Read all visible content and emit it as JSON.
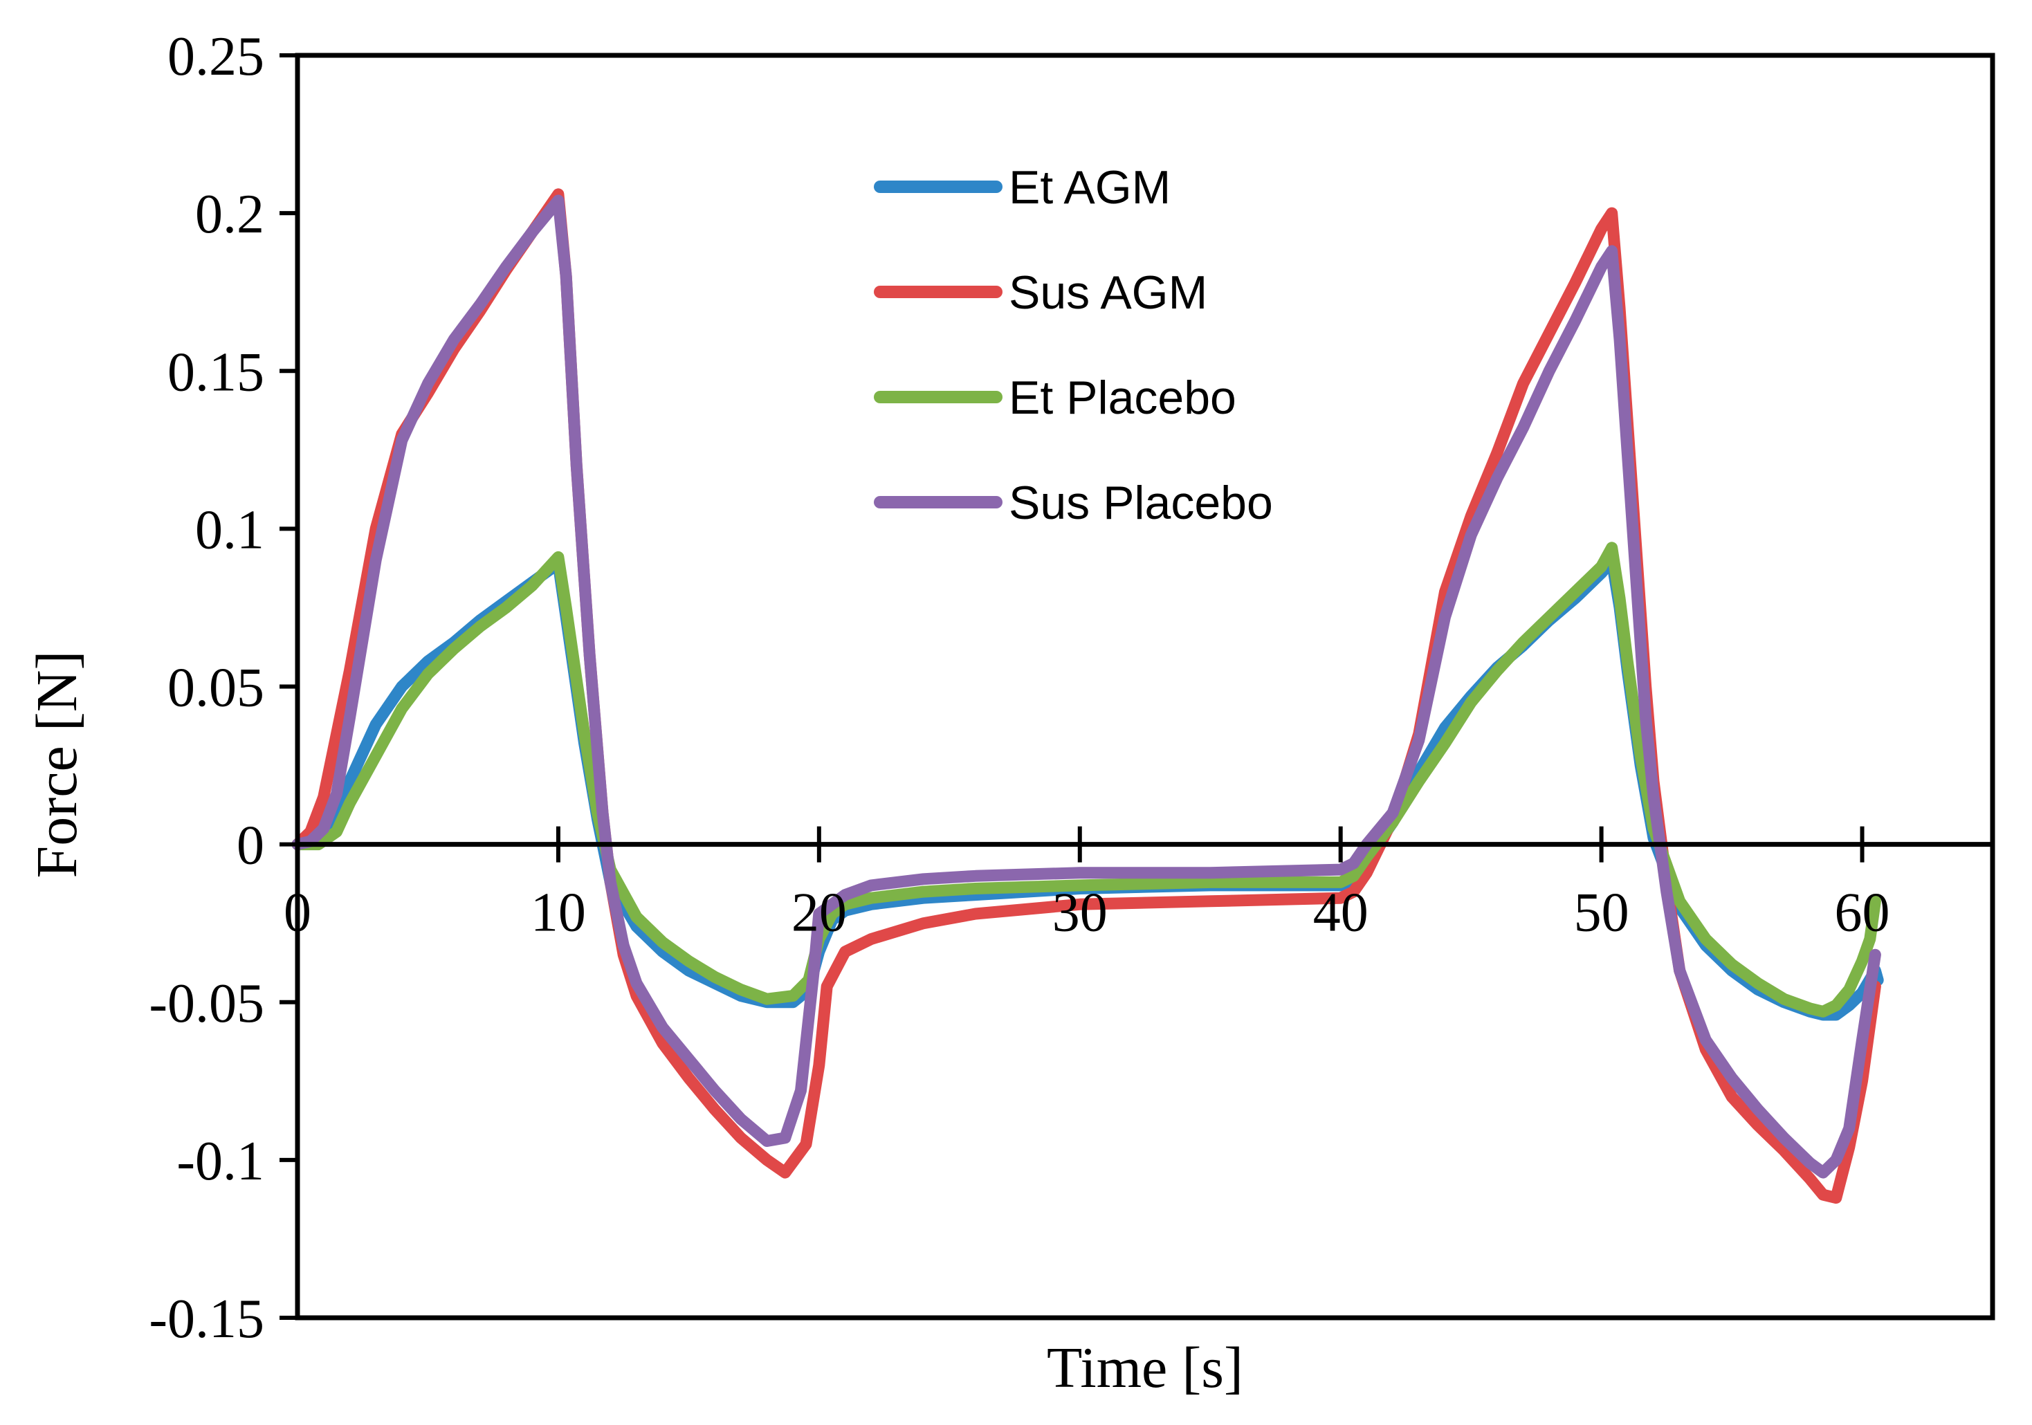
{
  "chart_data": {
    "type": "line",
    "title": "",
    "xlabel": "Time [s]",
    "ylabel": "Force [N]",
    "xlim": [
      0,
      65
    ],
    "ylim": [
      -0.15,
      0.25
    ],
    "xticks": [
      0,
      10,
      20,
      30,
      40,
      50,
      60
    ],
    "xtick_labels": [
      "0",
      "10",
      "20",
      "30",
      "40",
      "50",
      "60"
    ],
    "yticks": [
      -0.15,
      -0.1,
      -0.05,
      0,
      0.05,
      0.1,
      0.15,
      0.2,
      0.25
    ],
    "ytick_labels": [
      "-0.15",
      "-0.1",
      "-0.05",
      "0",
      "0.05",
      "0.1",
      "0.15",
      "0.2",
      "0.25"
    ],
    "grid": false,
    "legend_position": "top-center",
    "series": [
      {
        "name": "Et AGM",
        "color": "#2E86C8",
        "points": [
          [
            0,
            0
          ],
          [
            0.5,
            0.001
          ],
          [
            1,
            0.004
          ],
          [
            2,
            0.02
          ],
          [
            3,
            0.038
          ],
          [
            4,
            0.05
          ],
          [
            5,
            0.058
          ],
          [
            6,
            0.064
          ],
          [
            7,
            0.071
          ],
          [
            8,
            0.077
          ],
          [
            9,
            0.083
          ],
          [
            10,
            0.089
          ],
          [
            10.3,
            0.072
          ],
          [
            11,
            0.032
          ],
          [
            11.5,
            0.008
          ],
          [
            12,
            -0.012
          ],
          [
            13,
            -0.026
          ],
          [
            14,
            -0.034
          ],
          [
            15,
            -0.04
          ],
          [
            16,
            -0.044
          ],
          [
            17,
            -0.048
          ],
          [
            18,
            -0.05
          ],
          [
            19,
            -0.05
          ],
          [
            19.6,
            -0.046
          ],
          [
            20,
            -0.034
          ],
          [
            20.5,
            -0.024
          ],
          [
            21,
            -0.021
          ],
          [
            22,
            -0.019
          ],
          [
            24,
            -0.017
          ],
          [
            26,
            -0.016
          ],
          [
            30,
            -0.014
          ],
          [
            35,
            -0.013
          ],
          [
            40,
            -0.013
          ],
          [
            40.5,
            -0.011
          ],
          [
            41,
            -0.005
          ],
          [
            42,
            0.007
          ],
          [
            43,
            0.023
          ],
          [
            44,
            0.037
          ],
          [
            45,
            0.047
          ],
          [
            46,
            0.056
          ],
          [
            47,
            0.063
          ],
          [
            48,
            0.071
          ],
          [
            49,
            0.078
          ],
          [
            50,
            0.086
          ],
          [
            50.4,
            0.09
          ],
          [
            50.7,
            0.075
          ],
          [
            51,
            0.055
          ],
          [
            51.5,
            0.025
          ],
          [
            52,
            0.002
          ],
          [
            53,
            -0.02
          ],
          [
            54,
            -0.032
          ],
          [
            55,
            -0.04
          ],
          [
            56,
            -0.046
          ],
          [
            57,
            -0.05
          ],
          [
            58,
            -0.053
          ],
          [
            58.5,
            -0.054
          ],
          [
            59,
            -0.054
          ],
          [
            59.5,
            -0.051
          ],
          [
            60,
            -0.047
          ],
          [
            60.5,
            -0.04
          ],
          [
            60.6,
            -0.043
          ]
        ]
      },
      {
        "name": "Sus AGM",
        "color": "#E04848",
        "points": [
          [
            0,
            0
          ],
          [
            0.5,
            0.004
          ],
          [
            1,
            0.015
          ],
          [
            2,
            0.055
          ],
          [
            3,
            0.1
          ],
          [
            4,
            0.13
          ],
          [
            5,
            0.143
          ],
          [
            6,
            0.157
          ],
          [
            7,
            0.169
          ],
          [
            8,
            0.182
          ],
          [
            9,
            0.194
          ],
          [
            10,
            0.206
          ],
          [
            10.3,
            0.18
          ],
          [
            10.7,
            0.12
          ],
          [
            11.2,
            0.06
          ],
          [
            11.7,
            0.01
          ],
          [
            12,
            -0.012
          ],
          [
            12.5,
            -0.035
          ],
          [
            13,
            -0.048
          ],
          [
            14,
            -0.063
          ],
          [
            15,
            -0.074
          ],
          [
            16,
            -0.084
          ],
          [
            17,
            -0.093
          ],
          [
            18,
            -0.1
          ],
          [
            18.7,
            -0.104
          ],
          [
            19.5,
            -0.095
          ],
          [
            20,
            -0.07
          ],
          [
            20.3,
            -0.045
          ],
          [
            21,
            -0.034
          ],
          [
            22,
            -0.03
          ],
          [
            24,
            -0.025
          ],
          [
            26,
            -0.022
          ],
          [
            30,
            -0.019
          ],
          [
            35,
            -0.018
          ],
          [
            40,
            -0.017
          ],
          [
            40.5,
            -0.015
          ],
          [
            41,
            -0.009
          ],
          [
            42,
            0.008
          ],
          [
            43,
            0.035
          ],
          [
            44,
            0.08
          ],
          [
            45,
            0.104
          ],
          [
            46,
            0.124
          ],
          [
            47,
            0.146
          ],
          [
            48,
            0.162
          ],
          [
            49,
            0.178
          ],
          [
            50,
            0.195
          ],
          [
            50.4,
            0.2
          ],
          [
            50.7,
            0.17
          ],
          [
            51.2,
            0.11
          ],
          [
            51.7,
            0.05
          ],
          [
            52,
            0.02
          ],
          [
            52.5,
            -0.012
          ],
          [
            53,
            -0.04
          ],
          [
            54,
            -0.065
          ],
          [
            55,
            -0.08
          ],
          [
            56,
            -0.089
          ],
          [
            57,
            -0.097
          ],
          [
            58,
            -0.106
          ],
          [
            58.5,
            -0.111
          ],
          [
            59,
            -0.112
          ],
          [
            59.5,
            -0.096
          ],
          [
            60,
            -0.075
          ],
          [
            60.5,
            -0.045
          ]
        ]
      },
      {
        "name": "Et Placebo",
        "color": "#7DB347",
        "points": [
          [
            0,
            0
          ],
          [
            0.8,
            0
          ],
          [
            1.5,
            0.004
          ],
          [
            2,
            0.013
          ],
          [
            3,
            0.028
          ],
          [
            4,
            0.043
          ],
          [
            5,
            0.054
          ],
          [
            6,
            0.062
          ],
          [
            7,
            0.069
          ],
          [
            8,
            0.075
          ],
          [
            9,
            0.082
          ],
          [
            10,
            0.091
          ],
          [
            10.3,
            0.075
          ],
          [
            11,
            0.035
          ],
          [
            11.5,
            0.01
          ],
          [
            12,
            -0.008
          ],
          [
            13,
            -0.023
          ],
          [
            14,
            -0.031
          ],
          [
            15,
            -0.037
          ],
          [
            16,
            -0.042
          ],
          [
            17,
            -0.046
          ],
          [
            18,
            -0.049
          ],
          [
            19,
            -0.048
          ],
          [
            19.6,
            -0.043
          ],
          [
            20,
            -0.03
          ],
          [
            20.5,
            -0.022
          ],
          [
            21,
            -0.019
          ],
          [
            22,
            -0.017
          ],
          [
            24,
            -0.015
          ],
          [
            26,
            -0.014
          ],
          [
            30,
            -0.013
          ],
          [
            35,
            -0.012
          ],
          [
            40,
            -0.012
          ],
          [
            40.5,
            -0.01
          ],
          [
            41,
            -0.004
          ],
          [
            42,
            0.007
          ],
          [
            43,
            0.02
          ],
          [
            44,
            0.032
          ],
          [
            45,
            0.045
          ],
          [
            46,
            0.055
          ],
          [
            47,
            0.064
          ],
          [
            48,
            0.072
          ],
          [
            49,
            0.08
          ],
          [
            50,
            0.088
          ],
          [
            50.4,
            0.094
          ],
          [
            50.7,
            0.078
          ],
          [
            51,
            0.058
          ],
          [
            51.5,
            0.028
          ],
          [
            52,
            0.005
          ],
          [
            53,
            -0.018
          ],
          [
            54,
            -0.03
          ],
          [
            55,
            -0.038
          ],
          [
            56,
            -0.044
          ],
          [
            57,
            -0.049
          ],
          [
            58,
            -0.052
          ],
          [
            58.5,
            -0.053
          ],
          [
            59,
            -0.051
          ],
          [
            59.5,
            -0.046
          ],
          [
            60,
            -0.037
          ],
          [
            60.3,
            -0.03
          ],
          [
            60.5,
            -0.018
          ]
        ]
      },
      {
        "name": "Sus Placebo",
        "color": "#8B67AD",
        "points": [
          [
            0,
            0
          ],
          [
            0.5,
            0.001
          ],
          [
            1,
            0.005
          ],
          [
            1.5,
            0.016
          ],
          [
            2,
            0.04
          ],
          [
            3,
            0.09
          ],
          [
            4,
            0.128
          ],
          [
            5,
            0.146
          ],
          [
            6,
            0.16
          ],
          [
            7,
            0.171
          ],
          [
            8,
            0.183
          ],
          [
            9,
            0.194
          ],
          [
            10,
            0.204
          ],
          [
            10.3,
            0.18
          ],
          [
            10.7,
            0.12
          ],
          [
            11.2,
            0.06
          ],
          [
            11.7,
            0.01
          ],
          [
            12,
            -0.012
          ],
          [
            12.5,
            -0.032
          ],
          [
            13,
            -0.044
          ],
          [
            14,
            -0.058
          ],
          [
            15,
            -0.068
          ],
          [
            16,
            -0.078
          ],
          [
            17,
            -0.087
          ],
          [
            18,
            -0.094
          ],
          [
            18.7,
            -0.093
          ],
          [
            19.3,
            -0.078
          ],
          [
            19.8,
            -0.04
          ],
          [
            20,
            -0.022
          ],
          [
            21,
            -0.016
          ],
          [
            22,
            -0.013
          ],
          [
            24,
            -0.011
          ],
          [
            26,
            -0.01
          ],
          [
            30,
            -0.009
          ],
          [
            35,
            -0.009
          ],
          [
            40,
            -0.008
          ],
          [
            40.5,
            -0.006
          ],
          [
            41,
            0
          ],
          [
            42,
            0.01
          ],
          [
            43,
            0.033
          ],
          [
            44,
            0.072
          ],
          [
            45,
            0.098
          ],
          [
            46,
            0.116
          ],
          [
            47,
            0.132
          ],
          [
            48,
            0.15
          ],
          [
            49,
            0.166
          ],
          [
            50,
            0.183
          ],
          [
            50.4,
            0.188
          ],
          [
            50.7,
            0.16
          ],
          [
            51.2,
            0.1
          ],
          [
            51.7,
            0.04
          ],
          [
            52,
            0.015
          ],
          [
            52.5,
            -0.015
          ],
          [
            53,
            -0.04
          ],
          [
            54,
            -0.062
          ],
          [
            55,
            -0.074
          ],
          [
            56,
            -0.084
          ],
          [
            57,
            -0.093
          ],
          [
            58,
            -0.101
          ],
          [
            58.5,
            -0.104
          ],
          [
            59,
            -0.1
          ],
          [
            59.5,
            -0.09
          ],
          [
            60,
            -0.062
          ],
          [
            60.5,
            -0.035
          ]
        ]
      }
    ]
  }
}
